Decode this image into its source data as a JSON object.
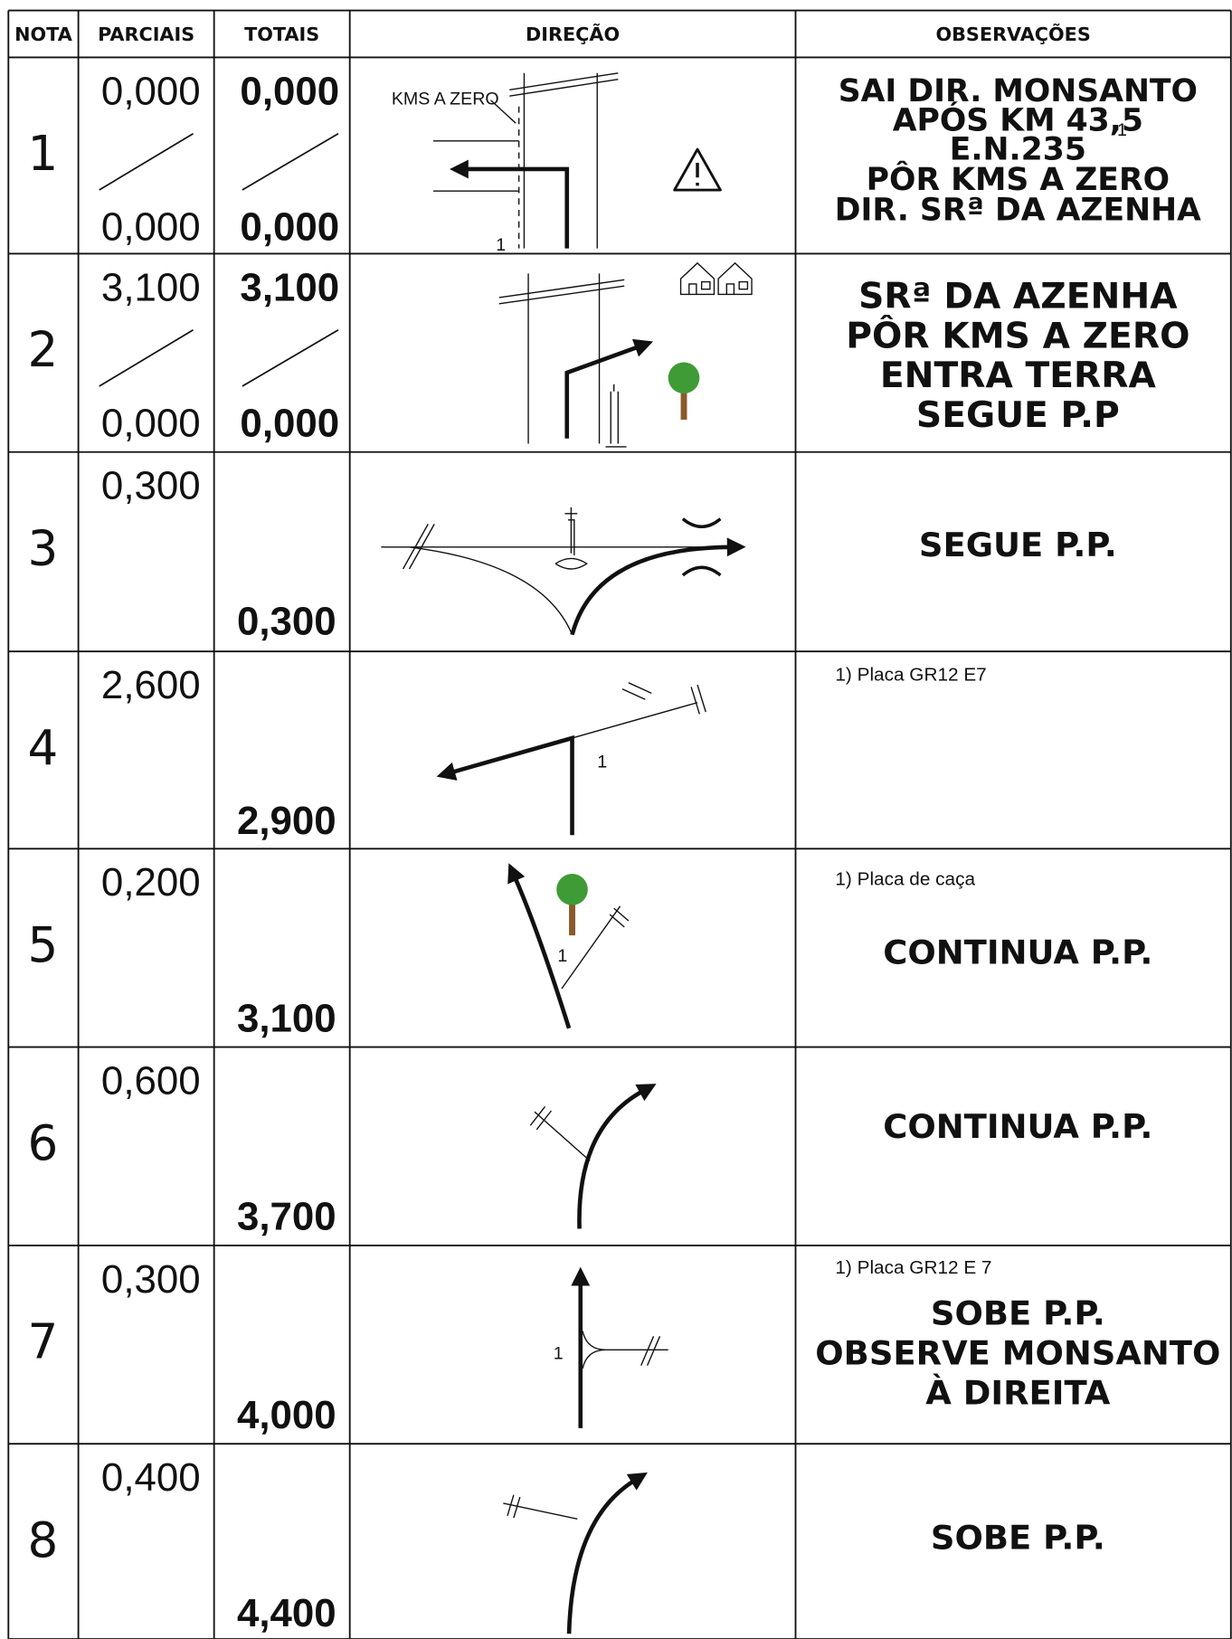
{
  "table": {
    "headers": [
      "NOTA",
      "PARCIAIS",
      "TOTAIS",
      "DIREÇÃO",
      "OBSERVAÇÕES"
    ],
    "rows": [
      {
        "nota": "1",
        "parciais": [
          "0,000",
          "0,000"
        ],
        "totais": [
          "0,000",
          "0,000"
        ],
        "diagram_labels": [
          "KMS A ZERO",
          "1"
        ],
        "observacoes": [
          "SAI DIR. MONSANTO",
          "APÓS KM 43,5",
          "E.N.235",
          "PÔR KMS A ZERO",
          "DIR. SRª DA AZENHA"
        ],
        "footnote_ref": "1"
      },
      {
        "nota": "2",
        "parciais": [
          "3,100",
          "0,000"
        ],
        "totais": [
          "3,100",
          "0,000"
        ],
        "observacoes": [
          "SRª DA AZENHA",
          "PÔR KMS A ZERO",
          "ENTRA TERRA",
          "SEGUE P.P"
        ]
      },
      {
        "nota": "3",
        "parciais": [
          "0,300"
        ],
        "totais": [
          "0,300"
        ],
        "observacoes": [
          "SEGUE P.P."
        ]
      },
      {
        "nota": "4",
        "parciais": [
          "2,600"
        ],
        "totais": [
          "2,900"
        ],
        "diagram_labels": [
          "1"
        ],
        "note": "1) Placa GR12 E7"
      },
      {
        "nota": "5",
        "parciais": [
          "0,200"
        ],
        "totais": [
          "3,100"
        ],
        "diagram_labels": [
          "1"
        ],
        "note": "1) Placa de caça",
        "observacoes": [
          "CONTINUA P.P."
        ]
      },
      {
        "nota": "6",
        "parciais": [
          "0,600"
        ],
        "totais": [
          "3,700"
        ],
        "observacoes": [
          "CONTINUA P.P."
        ]
      },
      {
        "nota": "7",
        "parciais": [
          "0,300"
        ],
        "totais": [
          "4,000"
        ],
        "diagram_labels": [
          "1"
        ],
        "note": "1) Placa GR12 E 7",
        "observacoes": [
          "SOBE P.P.",
          "OBSERVE MONSANTO",
          "À DIREITA"
        ]
      },
      {
        "nota": "8",
        "parciais": [
          "0,400"
        ],
        "totais": [
          "4,400"
        ],
        "observacoes": [
          "SOBE P.P."
        ]
      }
    ]
  }
}
